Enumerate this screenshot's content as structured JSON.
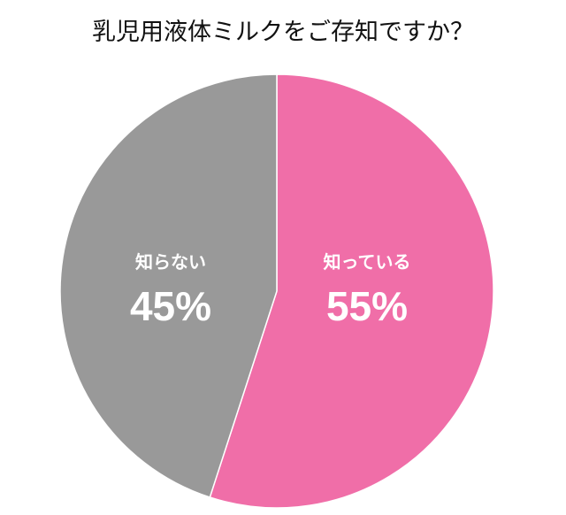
{
  "chart_data": {
    "type": "pie",
    "title": "乳児用液体ミルクをご存知ですか？",
    "categories": [
      "知っている",
      "知らない"
    ],
    "values": [
      55,
      45
    ],
    "value_labels": [
      "55%",
      "45%"
    ],
    "colors": [
      "#F06EA8",
      "#999999"
    ],
    "start_angle": "12 o'clock, clockwise",
    "legend": "none (labels inside slices)"
  },
  "labels": {
    "known_name": "知っている",
    "known_pct": "55%",
    "unknown_name": "知らない",
    "unknown_pct": "45%"
  }
}
